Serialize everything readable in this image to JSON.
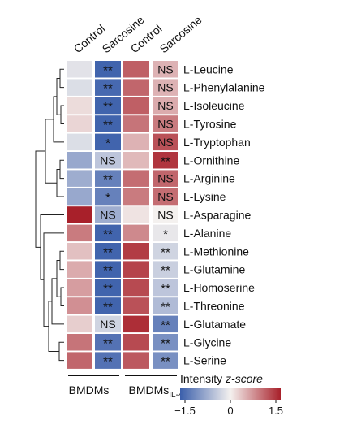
{
  "chart_data": {
    "type": "heatmap",
    "groups": [
      {
        "label": "BMDMs",
        "subscript": "",
        "columns": [
          "Control",
          "Sarcosine"
        ]
      },
      {
        "label": "BMDMs",
        "subscript": "IL-4",
        "columns": [
          "Control",
          "Sarcosine"
        ]
      }
    ],
    "columns": [
      "Control",
      "Sarcosine",
      "Control",
      "Sarcosine"
    ],
    "rows": [
      "L-Leucine",
      "L-Phenylalanine",
      "L-Isoleucine",
      "L-Tyrosine",
      "L-Tryptophan",
      "L-Ornithine",
      "L-Arginine",
      "L-Lysine",
      "L-Asparagine",
      "L-Alanine",
      "L-Methionine",
      "L-Glutamine",
      "L-Homoserine",
      "L-Threonine",
      "L-Glutamate",
      "L-Glycine",
      "L-Serine"
    ],
    "values": [
      [
        -0.15,
        -1.45,
        1.05,
        0.45
      ],
      [
        -0.2,
        -1.4,
        1.0,
        0.45
      ],
      [
        0.15,
        -1.45,
        1.05,
        0.5
      ],
      [
        0.2,
        -1.45,
        0.9,
        0.85
      ],
      [
        -0.2,
        -1.45,
        0.45,
        1.15
      ],
      [
        -0.75,
        -0.45,
        0.4,
        1.35
      ],
      [
        -0.7,
        -1.15,
        0.95,
        1.0
      ],
      [
        -0.75,
        -1.15,
        0.85,
        0.95
      ],
      [
        1.5,
        -0.7,
        0.1,
        0.0
      ],
      [
        0.85,
        -1.45,
        0.75,
        -0.1
      ],
      [
        0.35,
        -1.45,
        1.3,
        -0.3
      ],
      [
        0.5,
        -1.45,
        1.25,
        -0.35
      ],
      [
        0.6,
        -1.45,
        1.2,
        -0.45
      ],
      [
        0.7,
        -1.45,
        1.15,
        -0.55
      ],
      [
        0.25,
        -0.3,
        1.4,
        -1.15
      ],
      [
        0.9,
        -1.3,
        1.2,
        -1.0
      ],
      [
        1.0,
        -1.3,
        1.1,
        -1.0
      ]
    ],
    "annotations": [
      [
        "",
        "**",
        "",
        "NS"
      ],
      [
        "",
        "**",
        "",
        "NS"
      ],
      [
        "",
        "**",
        "",
        "NS"
      ],
      [
        "",
        "**",
        "",
        "NS"
      ],
      [
        "",
        "*",
        "",
        "NS"
      ],
      [
        "",
        "NS",
        "",
        "**"
      ],
      [
        "",
        "**",
        "",
        "NS"
      ],
      [
        "",
        "*",
        "",
        "NS"
      ],
      [
        "",
        "NS",
        "",
        "NS"
      ],
      [
        "",
        "**",
        "",
        "*"
      ],
      [
        "",
        "**",
        "",
        "**"
      ],
      [
        "",
        "**",
        "",
        "**"
      ],
      [
        "",
        "**",
        "",
        "**"
      ],
      [
        "",
        "**",
        "",
        "**"
      ],
      [
        "",
        "NS",
        "",
        "**"
      ],
      [
        "",
        "**",
        "",
        "**"
      ],
      [
        "",
        "**",
        "",
        "**"
      ]
    ],
    "colorbar": {
      "label": "Intensity z-score",
      "range": [
        -1.5,
        1.5
      ],
      "ticks": [
        "−1.5",
        "0",
        "1.5"
      ],
      "colors": [
        "#3b5fab",
        "#f4f1ef",
        "#a8202a"
      ]
    },
    "dendrogram": "left"
  }
}
